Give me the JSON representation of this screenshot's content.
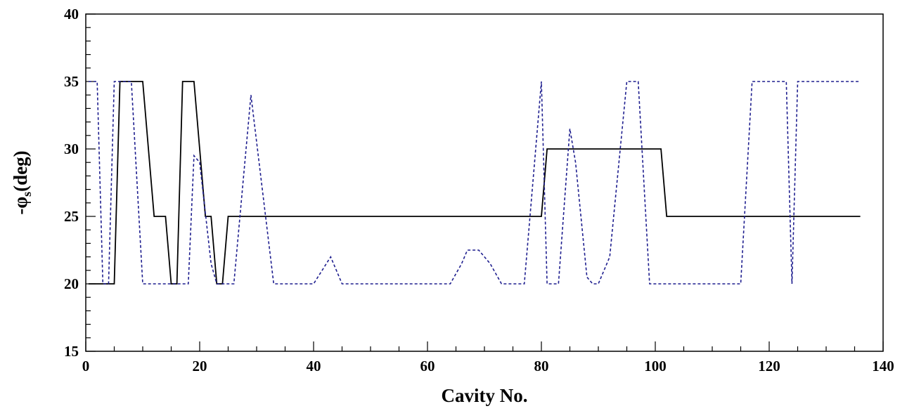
{
  "chart_data": {
    "type": "line",
    "xlabel": "Cavity No.",
    "ylabel": {
      "prefix": "-φ",
      "subscript": "s",
      "suffix": "(deg)"
    },
    "xlim": [
      0,
      140
    ],
    "ylim": [
      15,
      40
    ],
    "x_ticks": [
      0,
      20,
      40,
      60,
      80,
      100,
      120,
      140
    ],
    "y_ticks": [
      15,
      20,
      25,
      30,
      35,
      40
    ],
    "x_tick_labels": [
      "0",
      "20",
      "40",
      "60",
      "80",
      "100",
      "120",
      "140"
    ],
    "y_tick_labels": [
      "15",
      "20",
      "25",
      "30",
      "35",
      "40"
    ],
    "x_minor_step": 5,
    "y_minor_step": 1,
    "grid": false,
    "series": [
      {
        "style": "solid",
        "color": "#000000",
        "points": [
          [
            0.5,
            20
          ],
          [
            5,
            20
          ],
          [
            6,
            35
          ],
          [
            10,
            35
          ],
          [
            12,
            25
          ],
          [
            14,
            25
          ],
          [
            15,
            20
          ],
          [
            16,
            20
          ],
          [
            17,
            35
          ],
          [
            19,
            35
          ],
          [
            21,
            25
          ],
          [
            22,
            25
          ],
          [
            23,
            20
          ],
          [
            24,
            20
          ],
          [
            25,
            25
          ],
          [
            80,
            25
          ],
          [
            81,
            30
          ],
          [
            101,
            30
          ],
          [
            102,
            25
          ],
          [
            136,
            25
          ]
        ]
      },
      {
        "style": "dashed",
        "color": "#1f1f8f",
        "points": [
          [
            0.5,
            35
          ],
          [
            2,
            35
          ],
          [
            3,
            20
          ],
          [
            4,
            20
          ],
          [
            5,
            35
          ],
          [
            8,
            35
          ],
          [
            10,
            20
          ],
          [
            18,
            20
          ],
          [
            19,
            29.5
          ],
          [
            20,
            29
          ],
          [
            22,
            21.5
          ],
          [
            23,
            20
          ],
          [
            26,
            20
          ],
          [
            29,
            34
          ],
          [
            33,
            20
          ],
          [
            40,
            20
          ],
          [
            43,
            22
          ],
          [
            45,
            20
          ],
          [
            64,
            20
          ],
          [
            66,
            21.5
          ],
          [
            67,
            22.5
          ],
          [
            69,
            22.5
          ],
          [
            71,
            21.5
          ],
          [
            73,
            20
          ],
          [
            77,
            20
          ],
          [
            80,
            35
          ],
          [
            81,
            20
          ],
          [
            83,
            20
          ],
          [
            85,
            31.5
          ],
          [
            86,
            29
          ],
          [
            88,
            20.5
          ],
          [
            89,
            20
          ],
          [
            90,
            20
          ],
          [
            92,
            22
          ],
          [
            95,
            35
          ],
          [
            97,
            35
          ],
          [
            99,
            20
          ],
          [
            115,
            20
          ],
          [
            117,
            35
          ],
          [
            123,
            35
          ],
          [
            124,
            20
          ],
          [
            125,
            35
          ],
          [
            136,
            35
          ]
        ]
      }
    ]
  }
}
